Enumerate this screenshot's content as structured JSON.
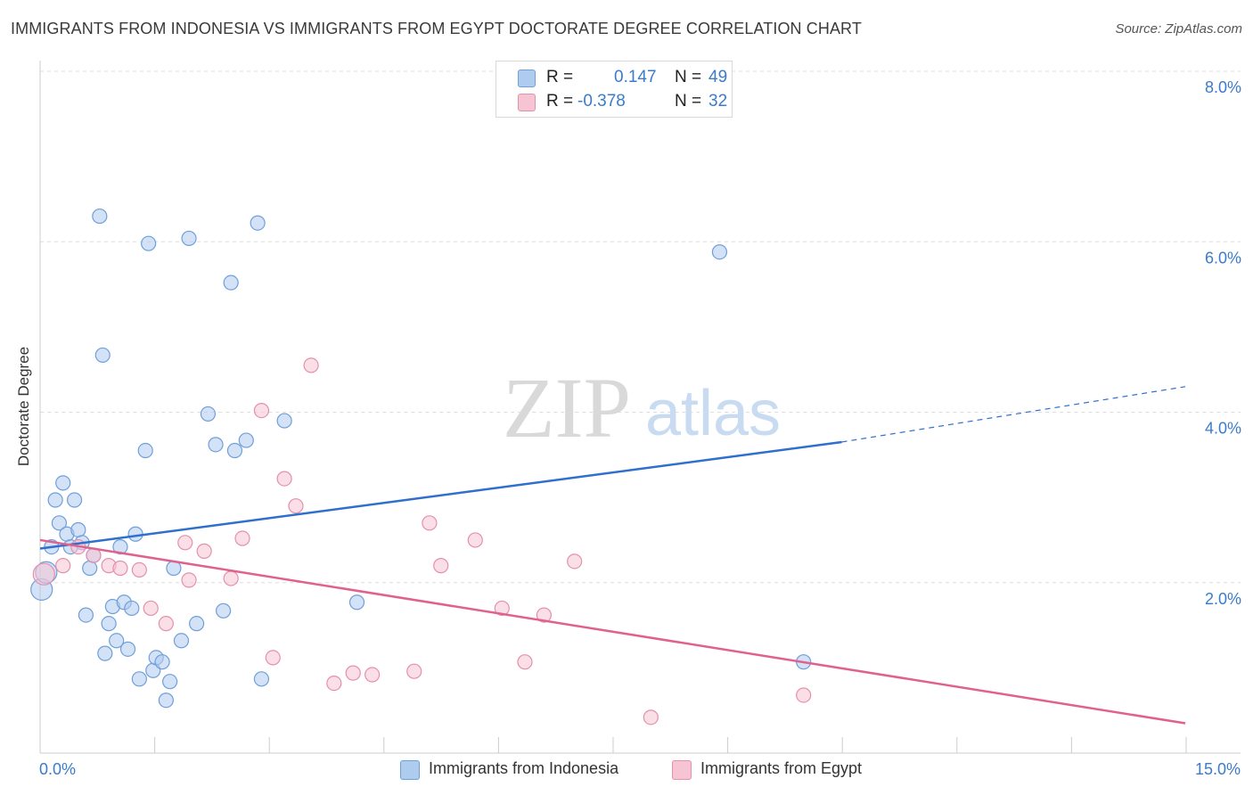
{
  "title": "IMMIGRANTS FROM INDONESIA VS IMMIGRANTS FROM EGYPT DOCTORATE DEGREE CORRELATION CHART",
  "source": "Source: ZipAtlas.com",
  "watermark": {
    "zip": "ZIP",
    "atlas": "atlas"
  },
  "legend_stats": [
    {
      "r_label": "R =",
      "r_value": "0.147",
      "n_label": "N =",
      "n_value": "49"
    },
    {
      "r_label": "R =",
      "r_value": "-0.378",
      "n_label": "N =",
      "n_value": "32"
    }
  ],
  "colors": {
    "indonesia_fill": "#aecbf0",
    "indonesia_stroke": "#6f9fd8",
    "indonesia_line": "#2f6fce",
    "egypt_fill": "#f6c4d3",
    "egypt_stroke": "#e58fae",
    "egypt_line": "#e0608e",
    "accent_text": "#3a7ccc",
    "grid": "#dddddd"
  },
  "chart_data": {
    "type": "scatter",
    "title": "IMMIGRANTS FROM INDONESIA VS IMMIGRANTS FROM EGYPT DOCTORATE DEGREE CORRELATION CHART",
    "xlabel": "",
    "ylabel": "Doctorate Degree",
    "xlim": [
      0,
      15
    ],
    "ylim": [
      0,
      8
    ],
    "x_tick_labels": [
      "0.0%",
      "15.0%"
    ],
    "y_ticks": [
      2,
      4,
      6,
      8
    ],
    "y_tick_labels": [
      "2.0%",
      "4.0%",
      "6.0%",
      "8.0%"
    ],
    "grid": true,
    "legend_position": "bottom",
    "series": [
      {
        "name": "Immigrants from Indonesia",
        "points": [
          [
            0.02,
            1.92
          ],
          [
            0.08,
            2.12
          ],
          [
            0.15,
            2.42
          ],
          [
            0.2,
            2.97
          ],
          [
            0.25,
            2.7
          ],
          [
            0.3,
            3.17
          ],
          [
            0.35,
            2.57
          ],
          [
            0.4,
            2.42
          ],
          [
            0.45,
            2.97
          ],
          [
            0.5,
            2.62
          ],
          [
            0.55,
            2.47
          ],
          [
            0.6,
            1.62
          ],
          [
            0.65,
            2.17
          ],
          [
            0.7,
            2.32
          ],
          [
            0.78,
            6.3
          ],
          [
            0.82,
            4.67
          ],
          [
            0.85,
            1.17
          ],
          [
            0.9,
            1.52
          ],
          [
            0.95,
            1.72
          ],
          [
            1.0,
            1.32
          ],
          [
            1.05,
            2.42
          ],
          [
            1.1,
            1.77
          ],
          [
            1.15,
            1.22
          ],
          [
            1.2,
            1.7
          ],
          [
            1.25,
            2.57
          ],
          [
            1.3,
            0.87
          ],
          [
            1.38,
            3.55
          ],
          [
            1.42,
            5.98
          ],
          [
            1.48,
            0.97
          ],
          [
            1.52,
            1.12
          ],
          [
            1.6,
            1.07
          ],
          [
            1.65,
            0.62
          ],
          [
            1.7,
            0.84
          ],
          [
            1.75,
            2.17
          ],
          [
            1.85,
            1.32
          ],
          [
            1.95,
            6.04
          ],
          [
            2.05,
            1.52
          ],
          [
            2.2,
            3.98
          ],
          [
            2.3,
            3.62
          ],
          [
            2.4,
            1.67
          ],
          [
            2.5,
            5.52
          ],
          [
            2.55,
            3.55
          ],
          [
            2.7,
            3.67
          ],
          [
            2.85,
            6.22
          ],
          [
            2.9,
            0.87
          ],
          [
            3.2,
            3.9
          ],
          [
            4.15,
            1.77
          ],
          [
            8.9,
            5.88
          ],
          [
            10.0,
            1.07
          ]
        ],
        "trendline": {
          "from": [
            0,
            2.4
          ],
          "to": [
            10.5,
            3.65
          ],
          "dashed_to": [
            15,
            4.3
          ]
        }
      },
      {
        "name": "Immigrants from Egypt",
        "points": [
          [
            0.05,
            2.1
          ],
          [
            0.3,
            2.2
          ],
          [
            0.5,
            2.42
          ],
          [
            0.7,
            2.32
          ],
          [
            0.9,
            2.2
          ],
          [
            1.05,
            2.17
          ],
          [
            1.3,
            2.15
          ],
          [
            1.45,
            1.7
          ],
          [
            1.65,
            1.52
          ],
          [
            1.9,
            2.47
          ],
          [
            1.95,
            2.03
          ],
          [
            2.15,
            2.37
          ],
          [
            2.5,
            2.05
          ],
          [
            2.65,
            2.52
          ],
          [
            2.9,
            4.02
          ],
          [
            3.05,
            1.12
          ],
          [
            3.2,
            3.22
          ],
          [
            3.35,
            2.9
          ],
          [
            3.55,
            4.55
          ],
          [
            3.85,
            0.82
          ],
          [
            4.1,
            0.94
          ],
          [
            4.35,
            0.92
          ],
          [
            4.9,
            0.96
          ],
          [
            5.1,
            2.7
          ],
          [
            5.25,
            2.2
          ],
          [
            5.7,
            2.5
          ],
          [
            6.05,
            1.7
          ],
          [
            6.35,
            1.07
          ],
          [
            6.6,
            1.62
          ],
          [
            7.0,
            2.25
          ],
          [
            8.0,
            0.42
          ],
          [
            10.0,
            0.68
          ]
        ],
        "trendline": {
          "from": [
            0,
            2.5
          ],
          "to": [
            15,
            0.35
          ]
        }
      }
    ]
  }
}
